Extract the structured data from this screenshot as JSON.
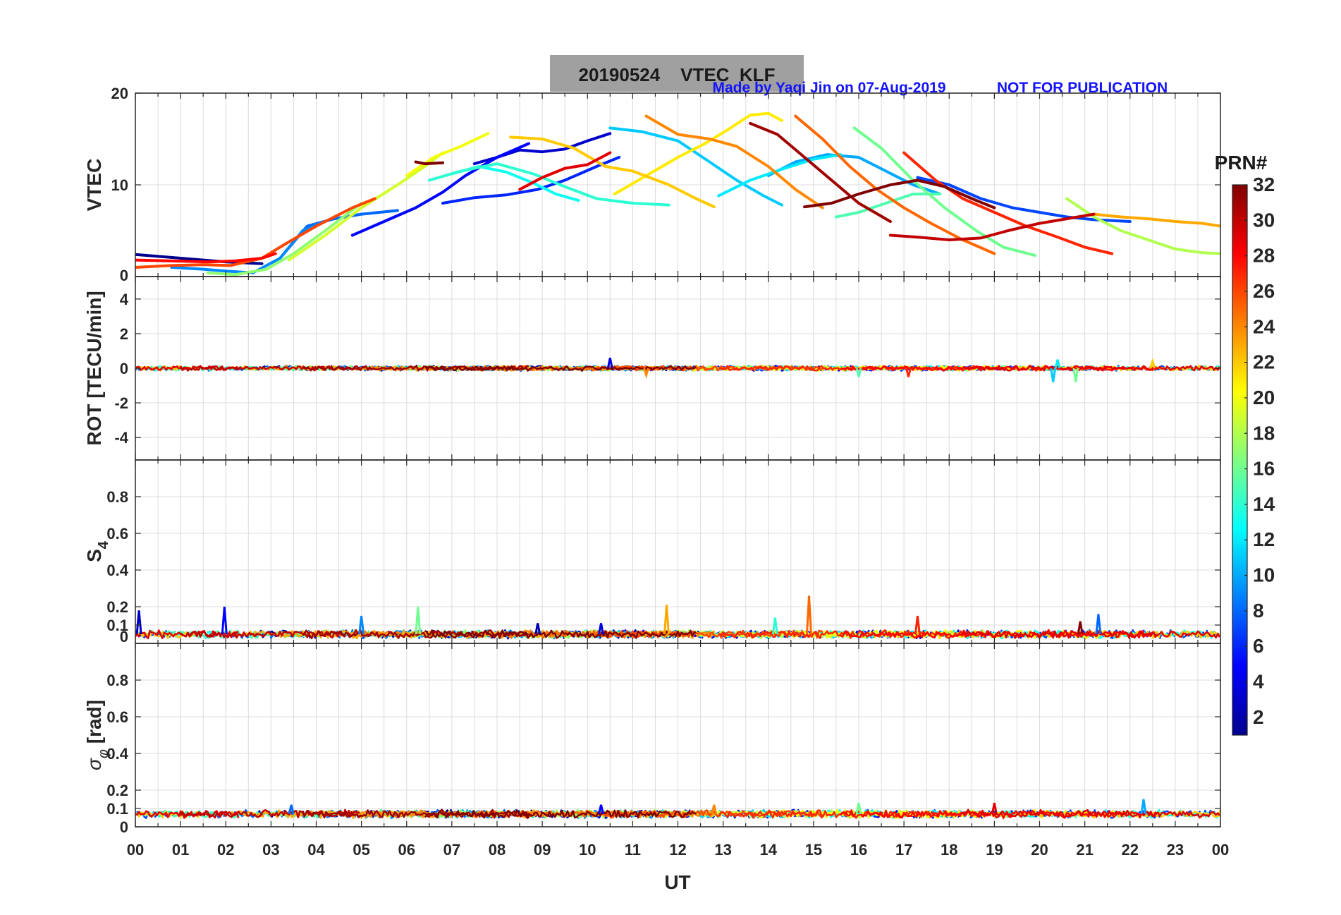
{
  "chart_data": {
    "type": "line",
    "title": "20190524    VTEC  KLF",
    "credit": "Made by Yaqi Jin on 07-Aug-2019",
    "notice": "NOT FOR PUBLICATION",
    "xlabel": "UT",
    "x_ticks": [
      "00",
      "01",
      "02",
      "03",
      "04",
      "05",
      "06",
      "07",
      "08",
      "09",
      "10",
      "11",
      "12",
      "13",
      "14",
      "15",
      "16",
      "17",
      "18",
      "19",
      "20",
      "21",
      "22",
      "23",
      "00"
    ],
    "xlim": [
      0,
      24
    ],
    "colorbar": {
      "label": "PRN#",
      "range": [
        1,
        32
      ],
      "ticks": [
        "2",
        "4",
        "6",
        "8",
        "10",
        "12",
        "14",
        "16",
        "18",
        "20",
        "22",
        "24",
        "26",
        "28",
        "30",
        "32"
      ],
      "colormap": [
        "#00008f",
        "#0000ff",
        "#0080ff",
        "#00ffff",
        "#80ff80",
        "#ffff00",
        "#ff8000",
        "#ff0000",
        "#800000"
      ]
    },
    "panels": [
      {
        "id": "vtec",
        "ylabel": "VTEC",
        "ylim": [
          0,
          20
        ],
        "y_ticks": [
          {
            "v": 0,
            "t": "0"
          },
          {
            "v": 10,
            "t": "10"
          },
          {
            "v": 20,
            "t": "20"
          }
        ],
        "series": [
          {
            "prn": 1,
            "x": [
              0,
              1,
              2,
              2.8
            ],
            "y": [
              2.4,
              2.0,
              1.6,
              1.4
            ]
          },
          {
            "prn": 3,
            "x": [
              7.5,
              8.0,
              8.5,
              9.0,
              9.5,
              10.0,
              10.5
            ],
            "y": [
              12.3,
              13.0,
              13.8,
              13.6,
              13.9,
              14.8,
              15.6
            ]
          },
          {
            "prn": 5,
            "x": [
              4.8,
              5.5,
              6.2,
              6.8,
              7.3,
              8.0,
              8.7
            ],
            "y": [
              4.5,
              6.0,
              7.5,
              9.2,
              11.0,
              13.0,
              14.5
            ]
          },
          {
            "prn": 6,
            "x": [
              6.8,
              7.5,
              8.2,
              8.9,
              9.5,
              10.2,
              10.7
            ],
            "y": [
              8.0,
              8.6,
              8.9,
              9.5,
              10.5,
              12.0,
              13.0
            ]
          },
          {
            "prn": 7,
            "x": [
              17.3,
              18.0,
              18.7,
              19.4,
              20.0,
              20.6,
              21.2,
              22.0
            ],
            "y": [
              10.8,
              10.0,
              8.5,
              7.5,
              7.0,
              6.5,
              6.2,
              6.0
            ]
          },
          {
            "prn": 8,
            "x": [
              3.2,
              3.8,
              4.4,
              5.0,
              5.8
            ],
            "y": [
              2.0,
              5.5,
              6.3,
              6.8,
              7.2
            ]
          },
          {
            "prn": 9,
            "x": [
              0.8,
              1.5,
              2.0,
              2.6,
              3.2,
              3.7,
              4.2
            ],
            "y": [
              1.0,
              0.8,
              0.6,
              0.4,
              2.0,
              5.0,
              6.0
            ]
          },
          {
            "prn": 10,
            "x": [
              14.0,
              14.6,
              15.3,
              16.0,
              16.6,
              17.2,
              17.8
            ],
            "y": [
              11.0,
              12.5,
              13.3,
              13.0,
              11.5,
              10.0,
              9.0
            ]
          },
          {
            "prn": 11,
            "x": [
              10.5,
              11.2,
              12.0,
              12.7,
              13.3,
              13.9,
              14.3
            ],
            "y": [
              16.2,
              15.8,
              14.8,
              12.5,
              10.5,
              8.8,
              7.8
            ]
          },
          {
            "prn": 12,
            "x": [
              12.9,
              13.6,
              14.3,
              15.0,
              15.6
            ],
            "y": [
              8.8,
              10.5,
              11.7,
              12.8,
              13.3
            ]
          },
          {
            "prn": 13,
            "x": [
              7.0,
              7.6,
              8.2,
              8.8,
              9.3,
              9.8
            ],
            "y": [
              11.2,
              12.0,
              11.4,
              10.2,
              9.0,
              8.3
            ]
          },
          {
            "prn": 14,
            "x": [
              6.5,
              7.2,
              8.0,
              8.8,
              9.5,
              10.2,
              11.0,
              11.8
            ],
            "y": [
              10.5,
              11.5,
              12.3,
              11.2,
              9.8,
              8.5,
              8.0,
              7.8
            ]
          },
          {
            "prn": 15,
            "x": [
              15.5,
              16.0,
              16.6,
              17.2,
              17.8
            ],
            "y": [
              6.5,
              7.0,
              8.0,
              9.0,
              9.0
            ]
          },
          {
            "prn": 16,
            "x": [
              15.9,
              16.5,
              17.2,
              17.9,
              18.6,
              19.2,
              19.9
            ],
            "y": [
              16.2,
              14.0,
              10.5,
              7.5,
              5.0,
              3.2,
              2.3
            ]
          },
          {
            "prn": 17,
            "x": [
              1.6,
              2.2,
              2.9,
              3.5,
              4.2,
              5.0
            ],
            "y": [
              0.4,
              0.2,
              0.8,
              2.5,
              5.0,
              8.0
            ]
          },
          {
            "prn": 18,
            "x": [
              20.6,
              21.2,
              21.8,
              22.4,
              23.0,
              23.6,
              24.0
            ],
            "y": [
              8.5,
              6.5,
              5.0,
              4.0,
              3.0,
              2.6,
              2.5
            ]
          },
          {
            "prn": 19,
            "x": [
              3.4,
              4.2,
              5.0,
              5.8,
              6.4,
              6.8
            ],
            "y": [
              1.8,
              4.5,
              7.5,
              10.0,
              12.0,
              13.5
            ]
          },
          {
            "prn": 20,
            "x": [
              6.0,
              6.6,
              7.2,
              7.8
            ],
            "y": [
              11.0,
              13.0,
              14.2,
              15.6
            ]
          },
          {
            "prn": 21,
            "x": [
              10.6,
              11.3,
              12.0,
              12.6,
              13.1,
              13.6,
              14.0,
              14.3
            ],
            "y": [
              9.0,
              11.0,
              13.0,
              14.5,
              16.0,
              17.6,
              17.8,
              17.0
            ]
          },
          {
            "prn": 22,
            "x": [
              8.3,
              9.0,
              9.7,
              10.4,
              11.0,
              11.8,
              12.4,
              12.8
            ],
            "y": [
              15.2,
              15.0,
              14.0,
              12.0,
              11.5,
              10.0,
              8.5,
              7.6
            ]
          },
          {
            "prn": 23,
            "x": [
              21.2,
              21.8,
              22.4,
              23.0,
              23.6,
              24.0
            ],
            "y": [
              6.8,
              6.5,
              6.3,
              6.0,
              5.8,
              5.5
            ]
          },
          {
            "prn": 24,
            "x": [
              11.3,
              12.0,
              12.7,
              13.3,
              14.0,
              14.6,
              15.2
            ],
            "y": [
              17.5,
              15.5,
              15.0,
              14.2,
              12.0,
              9.5,
              7.5
            ]
          },
          {
            "prn": 25,
            "x": [
              14.6,
              15.2,
              15.8,
              16.4,
              17.0,
              17.6,
              18.3,
              19.0
            ],
            "y": [
              17.5,
              15.0,
              12.0,
              9.5,
              7.5,
              5.8,
              4.0,
              2.5
            ]
          },
          {
            "prn": 26,
            "x": [
              0,
              0.8,
              1.5,
              2.1,
              2.8,
              3.3,
              4.0,
              4.8,
              5.3
            ],
            "y": [
              1.0,
              1.2,
              1.3,
              1.2,
              2.0,
              3.5,
              5.5,
              7.5,
              8.5
            ]
          },
          {
            "prn": 27,
            "x": [
              17.0,
              17.7,
              18.3,
              19.0,
              19.7,
              20.4,
              21.0,
              21.6
            ],
            "y": [
              13.5,
              10.5,
              8.5,
              7.0,
              5.5,
              4.3,
              3.2,
              2.5
            ]
          },
          {
            "prn": 28,
            "x": [
              0,
              0.8,
              1.6,
              2.2,
              2.8,
              3.1
            ],
            "y": [
              1.8,
              1.7,
              1.6,
              1.7,
              2.0,
              2.5
            ]
          },
          {
            "prn": 29,
            "x": [
              8.5,
              9.0,
              9.5,
              10.0,
              10.5
            ],
            "y": [
              9.5,
              10.8,
              11.8,
              12.2,
              13.5
            ]
          },
          {
            "prn": 30,
            "x": [
              16.7,
              17.3,
              18.0,
              18.7,
              19.3,
              20.0,
              20.6,
              21.2
            ],
            "y": [
              4.5,
              4.3,
              4.0,
              4.2,
              5.0,
              5.8,
              6.3,
              6.8
            ]
          },
          {
            "prn": 31,
            "x": [
              13.6,
              14.2,
              14.8,
              15.4,
              16.0,
              16.7
            ],
            "y": [
              16.7,
              15.5,
              13.0,
              10.5,
              8.0,
              6.0
            ]
          },
          {
            "prn": 32,
            "x": [
              6.2,
              6.4,
              6.8,
              14.8,
              15.4,
              16.0,
              16.7,
              17.3,
              17.9,
              18.5,
              19.0
            ],
            "y": [
              12.5,
              12.3,
              12.4,
              7.6,
              8.0,
              9.0,
              10.0,
              10.5,
              9.8,
              8.5,
              7.5
            ]
          }
        ]
      },
      {
        "id": "rot",
        "ylabel": "ROT [TECU/min]",
        "ylim": [
          -5.3,
          5.3
        ],
        "y_ticks": [
          {
            "v": 4,
            "t": "4"
          },
          {
            "v": 2,
            "t": "2"
          },
          {
            "v": 0,
            "t": "0"
          },
          {
            "v": -2,
            "t": "-2"
          },
          {
            "v": -4,
            "t": "-4"
          }
        ],
        "baseline": 0,
        "amplitude": 0.1,
        "spikes": [
          {
            "prn": 4,
            "x": 10.5,
            "y": 0.6
          },
          {
            "prn": 11,
            "x": 20.3,
            "y": -0.8
          },
          {
            "prn": 16,
            "x": 20.8,
            "y": -0.8
          },
          {
            "prn": 12,
            "x": 20.4,
            "y": 0.5
          },
          {
            "prn": 22,
            "x": 22.5,
            "y": 0.4
          },
          {
            "prn": 24,
            "x": 11.3,
            "y": -0.4
          },
          {
            "prn": 27,
            "x": 17.1,
            "y": -0.5
          },
          {
            "prn": 15,
            "x": 16.0,
            "y": -0.5
          }
        ]
      },
      {
        "id": "s4",
        "ylabel": "S4",
        "ylim": [
          0,
          1
        ],
        "y_ticks": [
          {
            "v": 0,
            "t": "0"
          },
          {
            "v": 0.1,
            "t": "0.1"
          },
          {
            "v": 0.2,
            "t": "0.2"
          },
          {
            "v": 0.4,
            "t": "0.4"
          },
          {
            "v": 0.6,
            "t": "0.6"
          },
          {
            "v": 0.8,
            "t": "0.8"
          }
        ],
        "baseline": 0.05,
        "amplitude": 0.015,
        "spikes": [
          {
            "prn": 3,
            "x": 0.08,
            "y": 0.18
          },
          {
            "prn": 5,
            "x": 1.97,
            "y": 0.2
          },
          {
            "prn": 9,
            "x": 5.0,
            "y": 0.15
          },
          {
            "prn": 16,
            "x": 6.25,
            "y": 0.2
          },
          {
            "prn": 23,
            "x": 11.75,
            "y": 0.21
          },
          {
            "prn": 25,
            "x": 14.9,
            "y": 0.26
          },
          {
            "prn": 14,
            "x": 14.15,
            "y": 0.14
          },
          {
            "prn": 27,
            "x": 17.3,
            "y": 0.15
          },
          {
            "prn": 8,
            "x": 21.3,
            "y": 0.16
          },
          {
            "prn": 32,
            "x": 20.9,
            "y": 0.12
          },
          {
            "prn": 2,
            "x": 8.9,
            "y": 0.11
          },
          {
            "prn": 4,
            "x": 10.3,
            "y": 0.11
          }
        ]
      },
      {
        "id": "sigma",
        "ylabel": "σφ [rad]",
        "ylim": [
          0,
          1
        ],
        "y_ticks": [
          {
            "v": 0,
            "t": "0"
          },
          {
            "v": 0.1,
            "t": "0.1"
          },
          {
            "v": 0.2,
            "t": "0.2"
          },
          {
            "v": 0.4,
            "t": "0.4"
          },
          {
            "v": 0.6,
            "t": "0.6"
          },
          {
            "v": 0.8,
            "t": "0.8"
          }
        ],
        "baseline": 0.07,
        "amplitude": 0.015,
        "spikes": [
          {
            "prn": 10,
            "x": 22.3,
            "y": 0.15
          },
          {
            "prn": 8,
            "x": 3.45,
            "y": 0.12
          },
          {
            "prn": 5,
            "x": 10.3,
            "y": 0.12
          },
          {
            "prn": 24,
            "x": 12.8,
            "y": 0.12
          },
          {
            "prn": 29,
            "x": 19.0,
            "y": 0.13
          },
          {
            "prn": 16,
            "x": 16.0,
            "y": 0.13
          }
        ]
      }
    ]
  }
}
